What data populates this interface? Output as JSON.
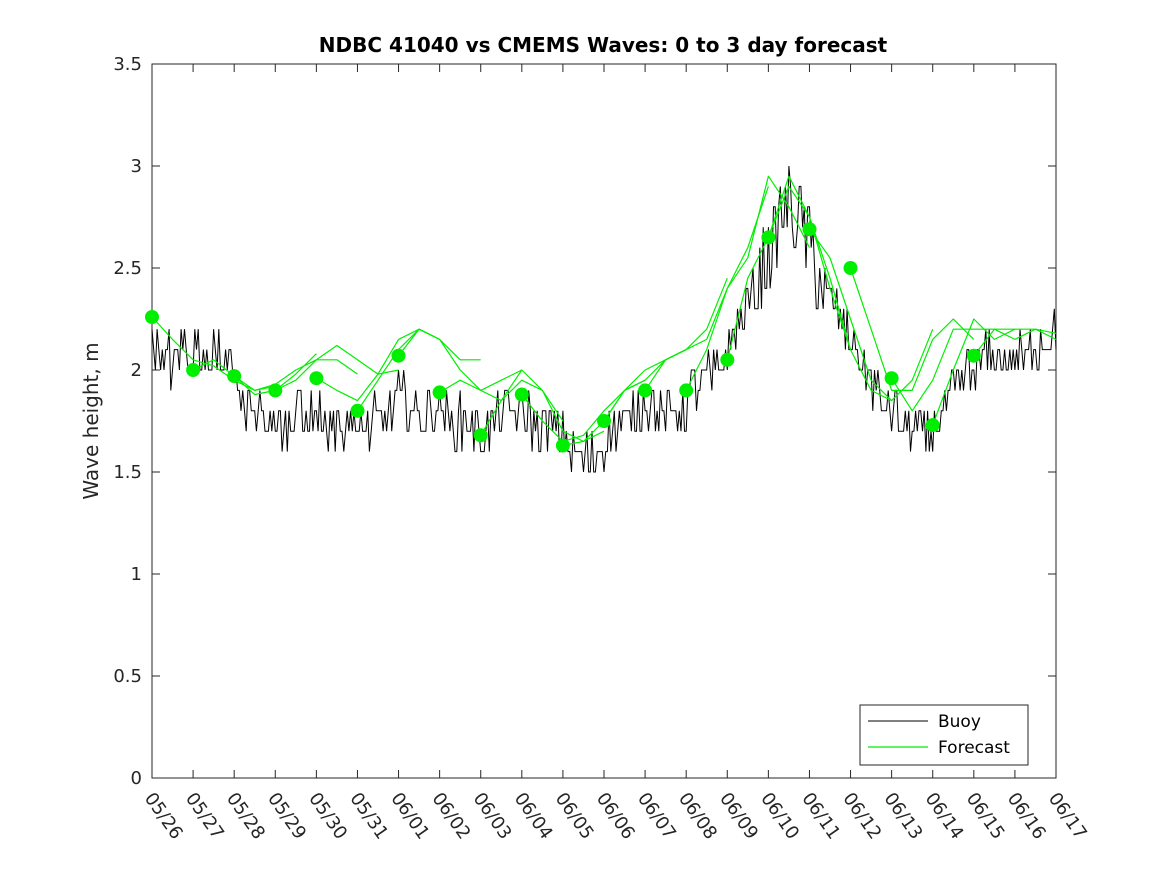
{
  "chart_data": {
    "type": "line",
    "title": "NDBC 41040 vs CMEMS Waves: 0 to 3 day forecast",
    "xlabel": "",
    "ylabel": "Wave height, m",
    "ylim": [
      0,
      3.5
    ],
    "yticks": [
      "0",
      "0.5",
      "1",
      "1.5",
      "2",
      "2.5",
      "3",
      "3.5"
    ],
    "xticks": [
      "05/26",
      "05/27",
      "05/28",
      "05/29",
      "05/30",
      "05/31",
      "06/01",
      "06/02",
      "06/03",
      "06/04",
      "06/05",
      "06/06",
      "06/07",
      "06/08",
      "06/09",
      "06/10",
      "06/11",
      "06/12",
      "06/13",
      "06/14",
      "06/15",
      "06/16",
      "06/17"
    ],
    "grid": false,
    "legend_position": "bottom-right",
    "colors": {
      "buoy": "#000000",
      "forecast": "#00ee00"
    },
    "series": [
      {
        "name": "Buoy",
        "x": [
          0,
          0.25,
          0.5,
          0.75,
          1,
          1.25,
          1.5,
          1.75,
          2,
          2.25,
          2.5,
          2.75,
          3,
          3.25,
          3.5,
          3.75,
          4,
          4.25,
          4.5,
          4.75,
          5,
          5.25,
          5.5,
          5.75,
          6,
          6.25,
          6.5,
          6.75,
          7,
          7.25,
          7.5,
          7.75,
          8,
          8.25,
          8.5,
          8.75,
          9,
          9.25,
          9.5,
          9.75,
          10,
          10.25,
          10.5,
          10.75,
          11,
          11.25,
          11.5,
          11.75,
          12,
          12.25,
          12.5,
          12.75,
          13,
          13.25,
          13.5,
          13.75,
          14,
          14.25,
          14.5,
          14.75,
          15,
          15.25,
          15.5,
          15.75,
          16,
          16.25,
          16.5,
          16.75,
          17,
          17.25,
          17.5,
          17.75,
          18,
          18.25,
          18.5,
          18.75,
          19,
          19.25,
          19.5,
          19.75,
          20,
          20.25,
          20.5,
          20.75,
          21,
          21.25,
          21.5,
          21.75,
          22
        ],
        "values": [
          2.05,
          2.1,
          2.05,
          2.1,
          2.05,
          2.05,
          2.05,
          2.05,
          2.0,
          1.85,
          1.8,
          1.75,
          1.75,
          1.75,
          1.75,
          1.75,
          1.8,
          1.75,
          1.75,
          1.75,
          1.72,
          1.72,
          1.75,
          1.8,
          1.85,
          1.85,
          1.8,
          1.8,
          1.8,
          1.75,
          1.75,
          1.75,
          1.7,
          1.75,
          1.78,
          1.8,
          1.8,
          1.75,
          1.72,
          1.7,
          1.68,
          1.6,
          1.55,
          1.58,
          1.65,
          1.72,
          1.75,
          1.8,
          1.85,
          1.82,
          1.75,
          1.78,
          1.85,
          1.9,
          1.95,
          2.0,
          2.08,
          2.2,
          2.35,
          2.4,
          2.55,
          2.7,
          2.8,
          2.75,
          2.6,
          2.45,
          2.35,
          2.25,
          2.15,
          2.05,
          1.95,
          1.85,
          1.8,
          1.75,
          1.7,
          1.68,
          1.72,
          1.8,
          1.88,
          1.95,
          2.0,
          2.05,
          2.05,
          2.05,
          2.05,
          2.05,
          2.1,
          2.15,
          2.15
        ]
      },
      {
        "name": "Forecast",
        "runs": [
          {
            "x": [
              0,
              0.5,
              1,
              1.5,
              2,
              2.5,
              3
            ],
            "values": [
              2.26,
              2.15,
              2.05,
              2.02,
              1.95,
              1.9,
              1.92
            ]
          },
          {
            "x": [
              1,
              1.5,
              2,
              2.5,
              3,
              3.5,
              4
            ],
            "values": [
              2.0,
              2.05,
              1.97,
              1.88,
              1.9,
              1.98,
              2.08
            ]
          },
          {
            "x": [
              2,
              2.5,
              3,
              3.5,
              4,
              4.5,
              5
            ],
            "values": [
              1.97,
              1.9,
              1.93,
              2.0,
              2.05,
              2.05,
              1.98
            ]
          },
          {
            "x": [
              3,
              3.5,
              4,
              4.5,
              5,
              5.5,
              6
            ],
            "values": [
              1.9,
              1.95,
              2.05,
              2.12,
              2.05,
              1.98,
              2.0
            ]
          },
          {
            "x": [
              4,
              4.5,
              5,
              5.5,
              6,
              6.5,
              7
            ],
            "values": [
              1.96,
              1.9,
              1.85,
              1.98,
              2.15,
              2.2,
              2.15
            ]
          },
          {
            "x": [
              5,
              5.5,
              6,
              6.5,
              7,
              7.5,
              8
            ],
            "values": [
              1.8,
              1.95,
              2.1,
              2.2,
              2.15,
              2.05,
              2.05
            ]
          },
          {
            "x": [
              6,
              6.5,
              7,
              7.5,
              8,
              8.5,
              9
            ],
            "values": [
              2.07,
              2.2,
              2.15,
              2.0,
              1.9,
              1.95,
              2.0
            ]
          },
          {
            "x": [
              7,
              7.5,
              8,
              8.5,
              9,
              9.5,
              10
            ],
            "values": [
              1.89,
              1.95,
              1.9,
              1.85,
              1.95,
              1.9,
              1.75
            ]
          },
          {
            "x": [
              8,
              8.5,
              9,
              9.5,
              10,
              10.5,
              11
            ],
            "values": [
              1.68,
              1.85,
              2.0,
              1.9,
              1.7,
              1.65,
              1.7
            ]
          },
          {
            "x": [
              9,
              9.5,
              10,
              10.5,
              11,
              11.5,
              12
            ],
            "values": [
              1.88,
              1.75,
              1.65,
              1.68,
              1.8,
              1.9,
              1.95
            ]
          },
          {
            "x": [
              10,
              10.5,
              11,
              11.5,
              12,
              12.5,
              13
            ],
            "values": [
              1.63,
              1.65,
              1.75,
              1.9,
              2.0,
              2.05,
              2.1
            ]
          },
          {
            "x": [
              11,
              11.5,
              12,
              12.5,
              13,
              13.5,
              14
            ],
            "values": [
              1.75,
              1.9,
              1.95,
              2.05,
              2.1,
              2.2,
              2.45
            ]
          },
          {
            "x": [
              12,
              12.5,
              13,
              13.5,
              14,
              14.5,
              15
            ],
            "values": [
              1.9,
              2.05,
              2.1,
              2.15,
              2.4,
              2.6,
              2.9
            ]
          },
          {
            "x": [
              13,
              13.5,
              14,
              14.5,
              15,
              15.5,
              16
            ],
            "values": [
              1.9,
              2.1,
              2.4,
              2.55,
              2.95,
              2.8,
              2.6
            ]
          },
          {
            "x": [
              14,
              14.5,
              15,
              15.5,
              16,
              16.5,
              17
            ],
            "values": [
              2.05,
              2.45,
              2.65,
              2.95,
              2.75,
              2.4,
              2.1
            ]
          },
          {
            "x": [
              15,
              15.5,
              16,
              16.5,
              17,
              17.5,
              18
            ],
            "values": [
              2.65,
              2.9,
              2.75,
              2.45,
              2.1,
              1.9,
              1.85
            ]
          },
          {
            "x": [
              16,
              16.5,
              17,
              17.5,
              18,
              18.5,
              19
            ],
            "values": [
              2.69,
              2.55,
              2.25,
              1.95,
              1.85,
              1.95,
              2.2
            ]
          },
          {
            "x": [
              17,
              17.5,
              18,
              18.5,
              19,
              19.5,
              20
            ],
            "values": [
              2.5,
              2.2,
              1.9,
              1.9,
              2.15,
              2.25,
              2.15
            ]
          },
          {
            "x": [
              18,
              18.5,
              19,
              19.5,
              20,
              20.5,
              21
            ],
            "values": [
              1.96,
              1.8,
              1.95,
              2.2,
              2.2,
              2.2,
              2.2
            ]
          },
          {
            "x": [
              19,
              19.5,
              20,
              20.5,
              21,
              21.5,
              22
            ],
            "values": [
              1.73,
              2.0,
              2.25,
              2.15,
              2.2,
              2.2,
              2.18
            ]
          },
          {
            "x": [
              20,
              20.5,
              21,
              21.5,
              22
            ],
            "values": [
              2.07,
              2.2,
              2.15,
              2.2,
              2.15
            ]
          }
        ],
        "markers": {
          "x": [
            0,
            1,
            2,
            3,
            4,
            5,
            6,
            7,
            8,
            9,
            10,
            11,
            12,
            13,
            14,
            15,
            16,
            17,
            18,
            19,
            20
          ],
          "values": [
            2.26,
            2.0,
            1.97,
            1.9,
            1.96,
            1.8,
            2.07,
            1.89,
            1.68,
            1.88,
            1.63,
            1.75,
            1.9,
            1.9,
            2.05,
            2.65,
            2.69,
            2.5,
            1.96,
            1.73,
            2.07
          ]
        }
      }
    ],
    "legend": [
      {
        "label": "Buoy"
      },
      {
        "label": "Forecast"
      }
    ]
  }
}
